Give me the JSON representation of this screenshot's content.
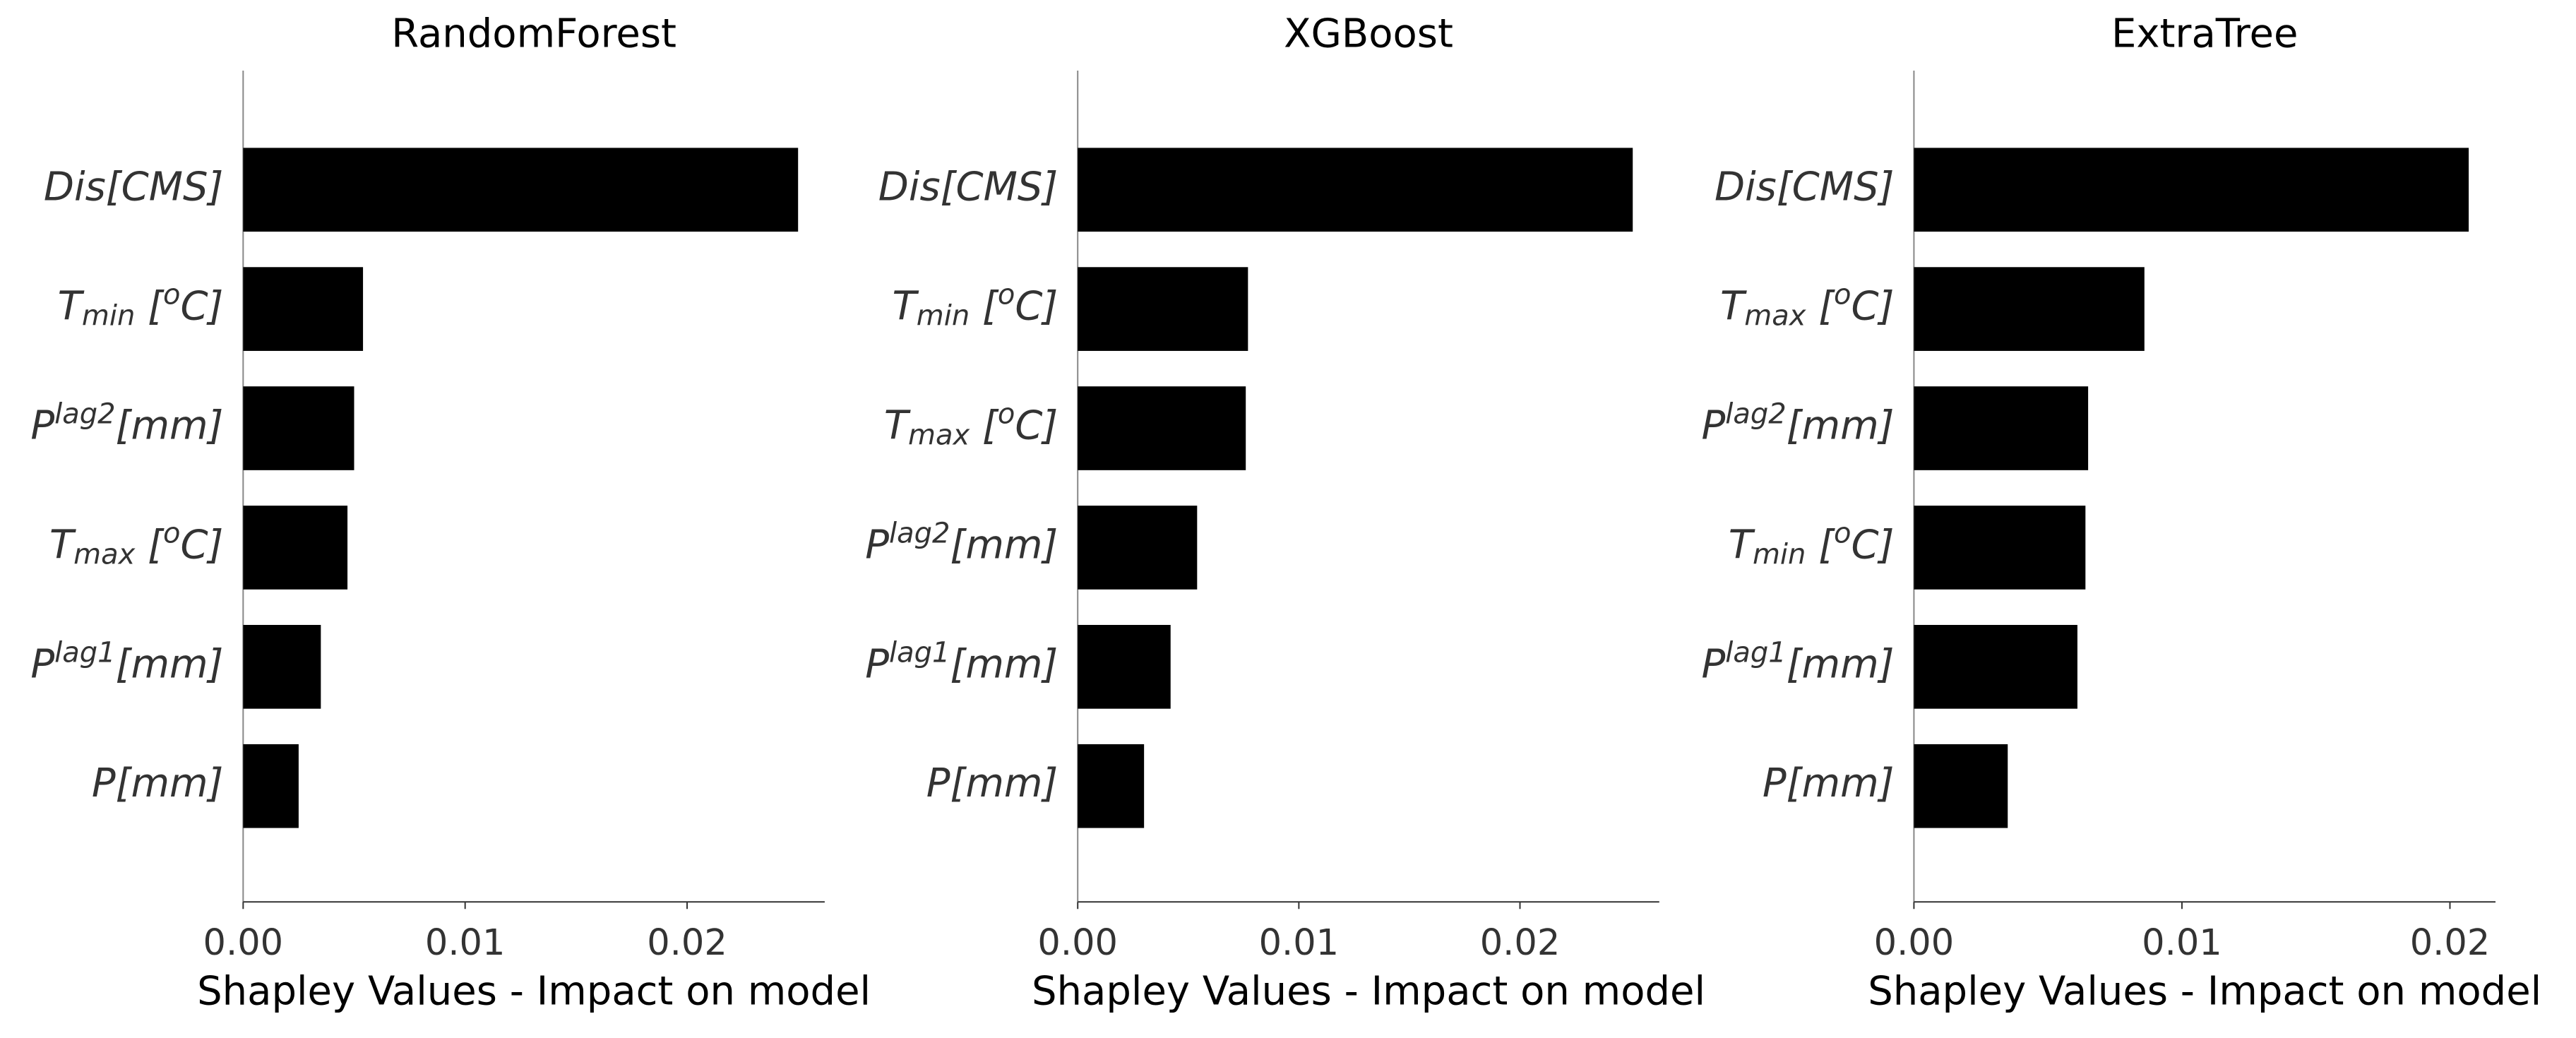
{
  "chart_data": [
    {
      "type": "barh",
      "title": "RandomForest",
      "xlabel": "Shapley Values - Impact on model",
      "color": "#000000",
      "categories": [
        [
          {
            "text": "Dis[CMS]"
          }
        ],
        [
          {
            "text": "T"
          },
          {
            "text": "min",
            "shift": "sub"
          },
          {
            "text": " ["
          },
          {
            "text": "o",
            "shift": "sup"
          },
          {
            "text": "C]"
          }
        ],
        [
          {
            "text": "P"
          },
          {
            "text": "lag2",
            "shift": "sup"
          },
          {
            "text": "[mm]"
          }
        ],
        [
          {
            "text": "T"
          },
          {
            "text": "max",
            "shift": "sub"
          },
          {
            "text": " ["
          },
          {
            "text": "o",
            "shift": "sup"
          },
          {
            "text": "C]"
          }
        ],
        [
          {
            "text": "P"
          },
          {
            "text": "lag1",
            "shift": "sup"
          },
          {
            "text": "[mm]"
          }
        ],
        [
          {
            "text": "P[mm]"
          }
        ]
      ],
      "values": [
        0.025,
        0.0054,
        0.005,
        0.0047,
        0.0035,
        0.0025
      ],
      "xlim": [
        0,
        0.0262
      ],
      "xticks": [
        {
          "value": 0,
          "label": "0.00"
        },
        {
          "value": 0.01,
          "label": "0.01"
        },
        {
          "value": 0.02,
          "label": "0.02"
        }
      ]
    },
    {
      "type": "barh",
      "title": "XGBoost",
      "xlabel": "Shapley Values - Impact on model",
      "color": "#000000",
      "categories": [
        [
          {
            "text": "Dis[CMS]"
          }
        ],
        [
          {
            "text": "T"
          },
          {
            "text": "min",
            "shift": "sub"
          },
          {
            "text": " ["
          },
          {
            "text": "o",
            "shift": "sup"
          },
          {
            "text": "C]"
          }
        ],
        [
          {
            "text": "T"
          },
          {
            "text": "max",
            "shift": "sub"
          },
          {
            "text": " ["
          },
          {
            "text": "o",
            "shift": "sup"
          },
          {
            "text": "C]"
          }
        ],
        [
          {
            "text": "P"
          },
          {
            "text": "lag2",
            "shift": "sup"
          },
          {
            "text": "[mm]"
          }
        ],
        [
          {
            "text": "P"
          },
          {
            "text": "lag1",
            "shift": "sup"
          },
          {
            "text": "[mm]"
          }
        ],
        [
          {
            "text": "P[mm]"
          }
        ]
      ],
      "values": [
        0.0251,
        0.0077,
        0.0076,
        0.0054,
        0.0042,
        0.003
      ],
      "xlim": [
        0,
        0.0263
      ],
      "xticks": [
        {
          "value": 0,
          "label": "0.00"
        },
        {
          "value": 0.01,
          "label": "0.01"
        },
        {
          "value": 0.02,
          "label": "0.02"
        }
      ]
    },
    {
      "type": "barh",
      "title": "ExtraTree",
      "xlabel": "Shapley Values - Impact on model",
      "color": "#000000",
      "categories": [
        [
          {
            "text": "Dis[CMS]"
          }
        ],
        [
          {
            "text": "T"
          },
          {
            "text": "max",
            "shift": "sub"
          },
          {
            "text": " ["
          },
          {
            "text": "o",
            "shift": "sup"
          },
          {
            "text": "C]"
          }
        ],
        [
          {
            "text": "P"
          },
          {
            "text": "lag2",
            "shift": "sup"
          },
          {
            "text": "[mm]"
          }
        ],
        [
          {
            "text": "T"
          },
          {
            "text": "min",
            "shift": "sub"
          },
          {
            "text": " ["
          },
          {
            "text": "o",
            "shift": "sup"
          },
          {
            "text": "C]"
          }
        ],
        [
          {
            "text": "P"
          },
          {
            "text": "lag1",
            "shift": "sup"
          },
          {
            "text": "[mm]"
          }
        ],
        [
          {
            "text": "P[mm]"
          }
        ]
      ],
      "values": [
        0.0207,
        0.0086,
        0.0065,
        0.0064,
        0.0061,
        0.0035
      ],
      "xlim": [
        0,
        0.0217
      ],
      "xticks": [
        {
          "value": 0,
          "label": "0.00"
        },
        {
          "value": 0.01,
          "label": "0.01"
        },
        {
          "value": 0.02,
          "label": "0.02"
        }
      ]
    }
  ]
}
